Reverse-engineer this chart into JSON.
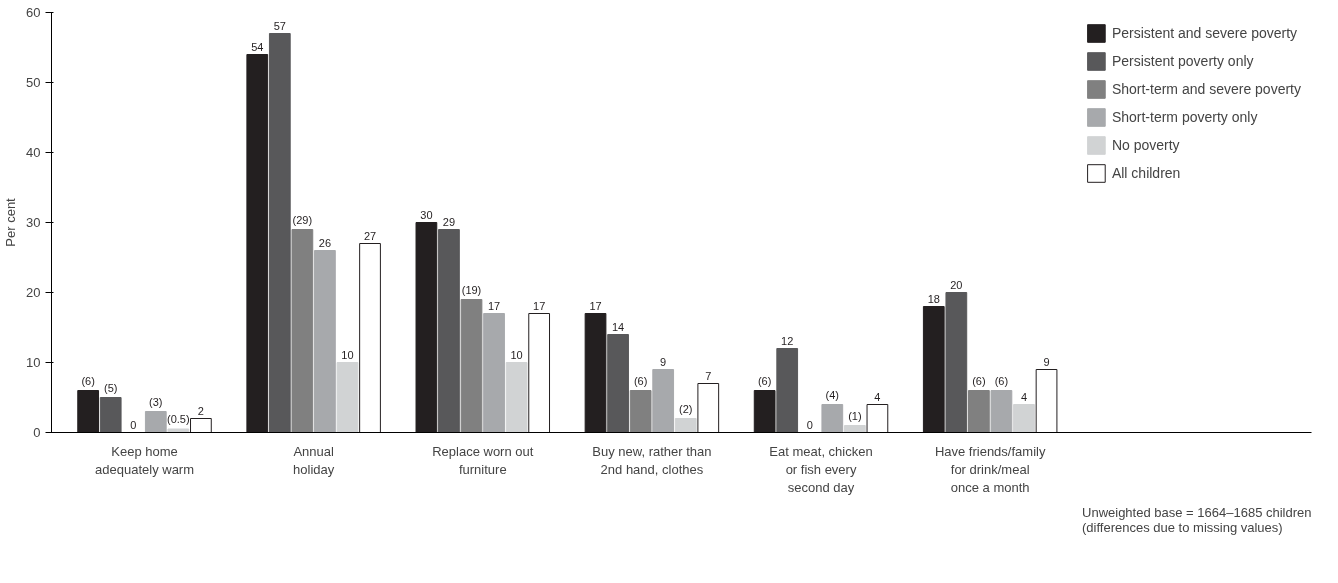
{
  "chart_data": {
    "type": "bar",
    "ylabel": "Per cent",
    "categories": [
      "Keep home\nadequately warm",
      "Annual\nholiday",
      "Replace worn out\nfurniture",
      "Buy new, rather than\n2nd hand, clothes",
      "Eat meat, chicken\nor fish every\nsecond day",
      "Have friends/family\nfor drink/meal\nonce a month"
    ],
    "series": [
      {
        "name": "Persistent and severe poverty",
        "color": "#231f20",
        "values": [
          6,
          54,
          30,
          17,
          6,
          18
        ],
        "value_labels": [
          "(6)",
          "54",
          "30",
          "17",
          "(6)",
          "18"
        ]
      },
      {
        "name": "Persistent poverty only",
        "color": "#58585a",
        "values": [
          5,
          57,
          29,
          14,
          12,
          20
        ],
        "value_labels": [
          "(5)",
          "57",
          "29",
          "14",
          "12",
          "20"
        ]
      },
      {
        "name": "Short-term and severe poverty",
        "color": "#808080",
        "values": [
          0,
          29,
          19,
          6,
          0,
          6
        ],
        "value_labels": [
          "0",
          "(29)",
          "(19)",
          "(6)",
          "0",
          "(6)"
        ]
      },
      {
        "name": "Short-term poverty only",
        "color": "#a7a9ac",
        "values": [
          3,
          26,
          17,
          9,
          4,
          6
        ],
        "value_labels": [
          "(3)",
          "26",
          "17",
          "9",
          "(4)",
          "(6)"
        ]
      },
      {
        "name": "No poverty",
        "color": "#d1d3d4",
        "values": [
          0.5,
          10,
          10,
          2,
          1,
          4
        ],
        "value_labels": [
          "(0.5)",
          "10",
          "10",
          "(2)",
          "(1)",
          "4"
        ]
      },
      {
        "name": "All children",
        "color": "#ffffff",
        "values": [
          2,
          27,
          17,
          7,
          4,
          9
        ],
        "value_labels": [
          "2",
          "27",
          "17",
          "7",
          "4",
          "9"
        ]
      }
    ],
    "ylim": [
      0,
      60
    ],
    "yticks": [
      0,
      10,
      20,
      30,
      40,
      50,
      60
    ],
    "grid": false,
    "legend": "top right",
    "annotations": [
      "Unweighted base = 1664–1685 children\n(differences due to missing values)"
    ]
  }
}
